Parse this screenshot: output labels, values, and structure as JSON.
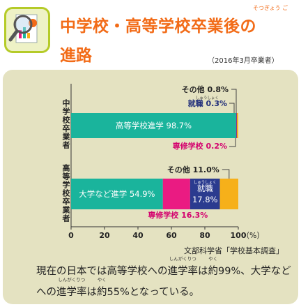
{
  "title_line1": "中学校・高等学校卒業後の",
  "title_line2": "進路",
  "title_ruby": "そつぎょう ご",
  "date_note": "（2016年3月卒業者）",
  "source": "文部科学省「学校基本調査」",
  "body_text": {
    "p1": "現在の日本では高等学校への",
    "w1": "進学率",
    "r1": "しんがくりつ",
    "p2": "は",
    "w2": "約",
    "r2": "やく",
    "p3": "99%、大学などへの",
    "w3": "進学率",
    "r3": "しんがくりつ",
    "p4": "は",
    "w4": "約",
    "r4": "やく",
    "p5": "55%となっている。"
  },
  "colors": {
    "title": "#f26b17",
    "panel": "#e4e2c1",
    "highschool": "#1ab49c",
    "university": "#1ab49c",
    "vocational": "#ea1b82",
    "employment": "#2b3b8f",
    "other": "#f6b01a",
    "label_magenta": "#d4006e",
    "label_navy": "#1f2d7a"
  },
  "chart_data": {
    "type": "bar",
    "orientation": "horizontal",
    "stacked": true,
    "xlim": [
      0,
      100
    ],
    "xticks": [
      "0",
      "20",
      "40",
      "60",
      "80",
      "100"
    ],
    "x_unit": "（%）",
    "categories": [
      "中学校卒業者",
      "高等学校卒業者"
    ],
    "series": [
      {
        "name": "中学校卒業者",
        "segments": [
          {
            "label": "高等学校進学",
            "value": 98.7,
            "color": "#1ab49c",
            "text": "高等学校進学  98.7%"
          },
          {
            "label": "就職",
            "value": 0.3,
            "color": "#2b3b8f",
            "text": "就職  0.3%"
          },
          {
            "label": "専修学校",
            "value": 0.2,
            "color": "#ea1b82",
            "text": "専修学校  0.2%"
          },
          {
            "label": "その他",
            "value": 0.8,
            "color": "#f6b01a",
            "text": "その他  0.8%"
          }
        ]
      },
      {
        "name": "高等学校卒業者",
        "segments": [
          {
            "label": "大学など進学",
            "value": 54.9,
            "color": "#1ab49c",
            "text": "大学など進学  54.9%"
          },
          {
            "label": "専修学校",
            "value": 16.3,
            "color": "#ea1b82",
            "text": "専修学校  16.3%"
          },
          {
            "label": "就職",
            "value": 17.8,
            "color": "#2b3b8f",
            "text": "就職",
            "text2": "17.8%"
          },
          {
            "label": "その他",
            "value": 11.0,
            "color": "#f6b01a",
            "text": "その他  11.0%"
          }
        ]
      }
    ],
    "furigana": {
      "就職": "しゅうしょく"
    }
  }
}
